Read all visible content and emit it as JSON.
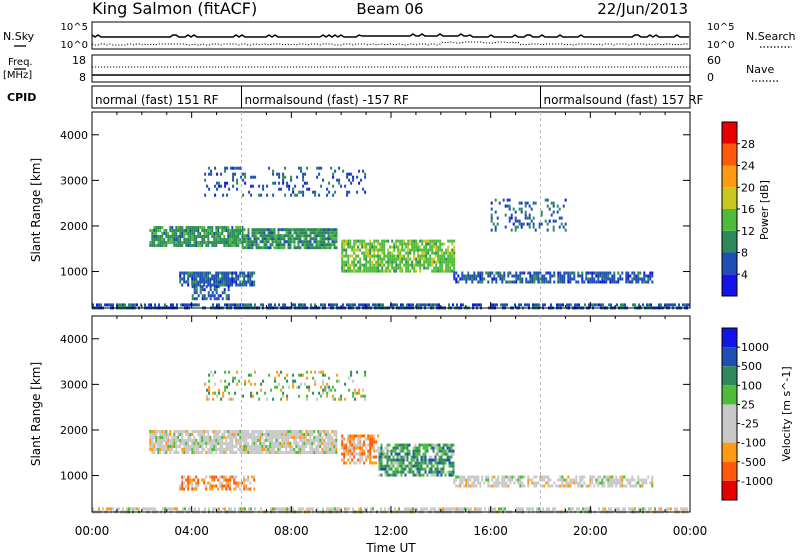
{
  "header": {
    "site": "King Salmon (fitACF)",
    "beam": "Beam 06",
    "date": "22/Jun/2013"
  },
  "noise_panel": {
    "left_label": "N.Sky",
    "right_label": "N.Search",
    "left_ticks": [
      "10^5",
      "10^0"
    ],
    "right_ticks": [
      "10^5",
      "10^0"
    ]
  },
  "freq_panel": {
    "left_label_1": "Freq.",
    "left_label_2": "[MHz]",
    "right_label": "Nave",
    "left_ticks": [
      "18",
      "8"
    ],
    "right_ticks": [
      "60",
      "0"
    ]
  },
  "cpid": {
    "label": "CPID",
    "segments": [
      {
        "text": "normal (fast) 151 RF",
        "start_hour": 0
      },
      {
        "text": "normalsound (fast) -157 RF",
        "start_hour": 6
      },
      {
        "text": "normalsound (fast) 157 RF",
        "start_hour": 18
      }
    ]
  },
  "colors": {
    "power": [
      "#1414e6",
      "#1e4fb4",
      "#2e8a5a",
      "#4dbb3c",
      "#c8c81e",
      "#ff9a14",
      "#ff5a0a",
      "#e60000"
    ],
    "velocity_neg": [
      "#e60000",
      "#ff5a0a",
      "#ff9a14"
    ],
    "velocity_zero": "#c8c8c8",
    "velocity_pos": [
      "#4dbb3c",
      "#2e8a5a",
      "#1e4fb4",
      "#1414e6"
    ]
  },
  "chart_data": [
    {
      "type": "heatmap",
      "name": "power",
      "xlabel": "",
      "ylabel": "Slant Range [km]",
      "xlim_hours": [
        0,
        24
      ],
      "ylim": [
        200,
        4500
      ],
      "yticks": [
        1000,
        2000,
        3000,
        4000
      ],
      "colorbar": {
        "label": "Power [dB]",
        "min": 0,
        "max": 32,
        "ticks": [
          4,
          8,
          12,
          16,
          20,
          24,
          28
        ]
      },
      "echo_regions": [
        {
          "t_start": 0.0,
          "t_end": 24.0,
          "r_min": 200,
          "r_max": 300,
          "level": 2,
          "density": 0.7
        },
        {
          "t_start": 2.3,
          "t_end": 6.0,
          "r_min": 1600,
          "r_max": 2000,
          "level": 3,
          "density": 0.85
        },
        {
          "t_start": 6.0,
          "t_end": 9.8,
          "r_min": 1500,
          "r_max": 1950,
          "level": 3,
          "density": 0.85
        },
        {
          "t_start": 10.0,
          "t_end": 14.5,
          "r_min": 1000,
          "r_max": 1700,
          "level": 4,
          "density": 0.8
        },
        {
          "t_start": 3.5,
          "t_end": 6.5,
          "r_min": 700,
          "r_max": 1000,
          "level": 2,
          "density": 0.8
        },
        {
          "t_start": 4.0,
          "t_end": 5.5,
          "r_min": 400,
          "r_max": 700,
          "level": 2,
          "density": 0.6
        },
        {
          "t_start": 14.5,
          "t_end": 22.5,
          "r_min": 800,
          "r_max": 1000,
          "level": 2,
          "density": 0.7
        },
        {
          "t_start": 4.5,
          "t_end": 11.0,
          "r_min": 2700,
          "r_max": 3300,
          "level": 2,
          "density": 0.2
        },
        {
          "t_start": 16.0,
          "t_end": 19.0,
          "r_min": 1900,
          "r_max": 2600,
          "level": 2,
          "density": 0.25
        }
      ]
    },
    {
      "type": "heatmap",
      "name": "velocity",
      "xlabel": "Time UT",
      "ylabel": "Slant Range [km]",
      "xlim_hours": [
        0,
        24
      ],
      "xticks": [
        "00:00",
        "04:00",
        "08:00",
        "12:00",
        "16:00",
        "20:00",
        "00:00"
      ],
      "ylim": [
        200,
        4500
      ],
      "yticks": [
        1000,
        2000,
        3000,
        4000
      ],
      "colorbar": {
        "label": "Velocity [m s^-1]",
        "ticks": [
          "1000",
          "500",
          "100",
          "25",
          "-25",
          "-100",
          "-500",
          "-1000"
        ]
      },
      "echo_regions": [
        {
          "t_start": 0.0,
          "t_end": 24.0,
          "r_min": 200,
          "r_max": 300,
          "class": "zero",
          "density": 0.7
        },
        {
          "t_start": 2.3,
          "t_end": 9.8,
          "r_min": 1500,
          "r_max": 2000,
          "class": "zero",
          "density": 0.85
        },
        {
          "t_start": 10.0,
          "t_end": 11.5,
          "r_min": 1300,
          "r_max": 1900,
          "class": "neg",
          "density": 0.7
        },
        {
          "t_start": 11.5,
          "t_end": 14.5,
          "r_min": 1000,
          "r_max": 1700,
          "class": "pos",
          "density": 0.75
        },
        {
          "t_start": 3.5,
          "t_end": 6.5,
          "r_min": 700,
          "r_max": 1000,
          "class": "neg",
          "density": 0.6
        },
        {
          "t_start": 14.5,
          "t_end": 22.5,
          "r_min": 800,
          "r_max": 1000,
          "class": "zero",
          "density": 0.6
        },
        {
          "t_start": 4.5,
          "t_end": 11.0,
          "r_min": 2700,
          "r_max": 3300,
          "class": "mixed",
          "density": 0.2
        }
      ]
    }
  ]
}
